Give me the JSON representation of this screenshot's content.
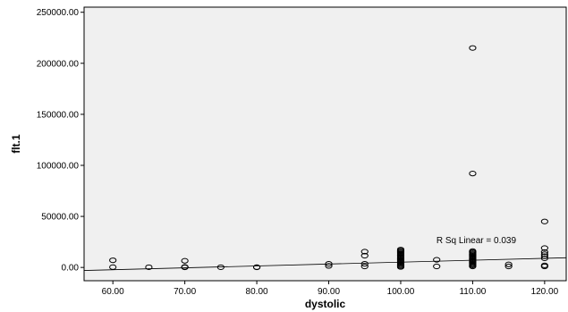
{
  "chart_data": {
    "type": "scatter",
    "xlabel": "dystolic",
    "ylabel": "flt.1",
    "xlim": [
      56,
      123
    ],
    "ylim": [
      -13000,
      255000
    ],
    "x_ticks": [
      60,
      70,
      80,
      90,
      100,
      110,
      120
    ],
    "x_tick_labels": [
      "60.00",
      "70.00",
      "80.00",
      "90.00",
      "100.00",
      "110.00",
      "120.00"
    ],
    "y_ticks": [
      0,
      50000,
      100000,
      150000,
      200000,
      250000
    ],
    "y_tick_labels": [
      "0.00",
      "50000.00",
      "100000.00",
      "150000.00",
      "200000.00",
      "250000.00"
    ],
    "grid": false,
    "background": "#f0f0f0",
    "marker": "open-circle",
    "marker_color": "#000000",
    "points": [
      [
        60,
        7000
      ],
      [
        60,
        300
      ],
      [
        65,
        200
      ],
      [
        70,
        6500
      ],
      [
        70,
        500
      ],
      [
        70,
        100
      ],
      [
        75,
        200
      ],
      [
        80,
        300
      ],
      [
        80,
        100
      ],
      [
        90,
        3500
      ],
      [
        90,
        1500
      ],
      [
        95,
        15500
      ],
      [
        95,
        11500
      ],
      [
        95,
        3500
      ],
      [
        95,
        1000
      ],
      [
        100,
        17500
      ],
      [
        100,
        16500
      ],
      [
        100,
        15500
      ],
      [
        100,
        14500
      ],
      [
        100,
        13500
      ],
      [
        100,
        12500
      ],
      [
        100,
        11500
      ],
      [
        100,
        10500
      ],
      [
        100,
        9500
      ],
      [
        100,
        8500
      ],
      [
        100,
        7500
      ],
      [
        100,
        6500
      ],
      [
        100,
        5500
      ],
      [
        100,
        4500
      ],
      [
        100,
        3500
      ],
      [
        100,
        2500
      ],
      [
        100,
        1500
      ],
      [
        100,
        500
      ],
      [
        105,
        7500
      ],
      [
        105,
        1000
      ],
      [
        110,
        215000
      ],
      [
        110,
        92000
      ],
      [
        110,
        16000
      ],
      [
        110,
        15000
      ],
      [
        110,
        14000
      ],
      [
        110,
        13000
      ],
      [
        110,
        12000
      ],
      [
        110,
        11000
      ],
      [
        110,
        10000
      ],
      [
        110,
        9000
      ],
      [
        110,
        8000
      ],
      [
        110,
        7000
      ],
      [
        110,
        6000
      ],
      [
        110,
        5000
      ],
      [
        110,
        4000
      ],
      [
        110,
        3000
      ],
      [
        110,
        2000
      ],
      [
        110,
        1000
      ],
      [
        115,
        3000
      ],
      [
        115,
        1000
      ],
      [
        120,
        45000
      ],
      [
        120,
        19000
      ],
      [
        120,
        15000
      ],
      [
        120,
        13000
      ],
      [
        120,
        11000
      ],
      [
        120,
        9000
      ],
      [
        120,
        2000
      ],
      [
        120,
        1000
      ]
    ],
    "fit_line": {
      "x": [
        56,
        123
      ],
      "y": [
        -3000,
        9500
      ]
    },
    "annotation": {
      "text": "R Sq Linear = 0.039",
      "x": 110.5,
      "y": 24000
    }
  }
}
